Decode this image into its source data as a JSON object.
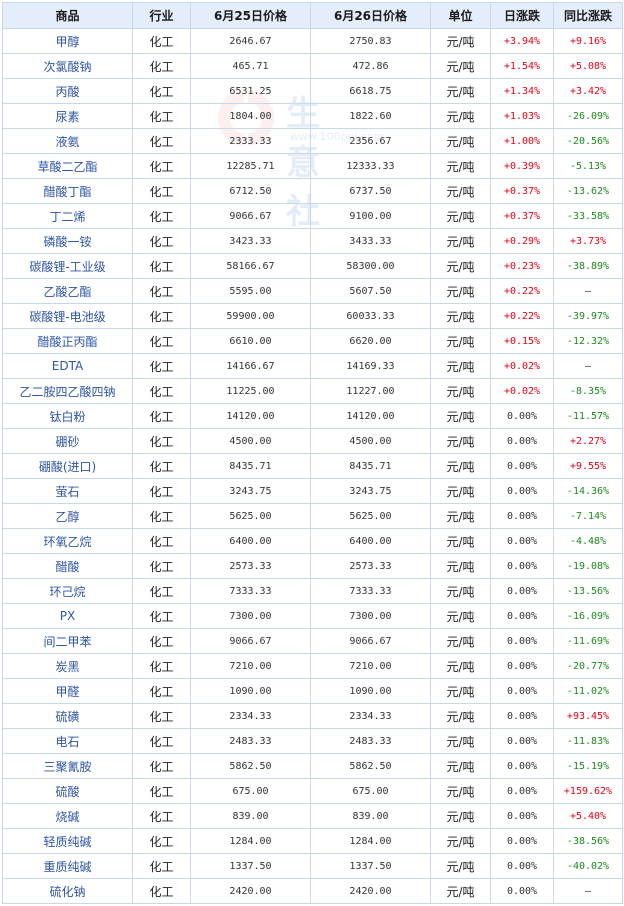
{
  "headers": {
    "product": "商品",
    "industry": "行业",
    "price_0625": "6月25日价格",
    "price_0626": "6月26日价格",
    "unit": "单位",
    "daily_change": "日涨跌",
    "yoy_change": "同比涨跌"
  },
  "watermark": {
    "name": "生意社",
    "url": "www.100ppi.com"
  },
  "colors": {
    "up": "#e60012",
    "down": "#1b8a1b",
    "header_bg": "#e4eefa",
    "border": "#c9d8e9",
    "link": "#2f55a5"
  },
  "rows": [
    {
      "name": "甲醇",
      "industry": "化工",
      "p1": "2646.67",
      "p2": "2750.83",
      "unit": "元/吨",
      "daily": "+3.94%",
      "daily_dir": "up",
      "yoy": "+9.16%",
      "yoy_dir": "up"
    },
    {
      "name": "次氯酸钠",
      "industry": "化工",
      "p1": "465.71",
      "p2": "472.86",
      "unit": "元/吨",
      "daily": "+1.54%",
      "daily_dir": "up",
      "yoy": "+5.08%",
      "yoy_dir": "up"
    },
    {
      "name": "丙酸",
      "industry": "化工",
      "p1": "6531.25",
      "p2": "6618.75",
      "unit": "元/吨",
      "daily": "+1.34%",
      "daily_dir": "up",
      "yoy": "+3.42%",
      "yoy_dir": "up"
    },
    {
      "name": "尿素",
      "industry": "化工",
      "p1": "1804.00",
      "p2": "1822.60",
      "unit": "元/吨",
      "daily": "+1.03%",
      "daily_dir": "up",
      "yoy": "-26.09%",
      "yoy_dir": "down"
    },
    {
      "name": "液氨",
      "industry": "化工",
      "p1": "2333.33",
      "p2": "2356.67",
      "unit": "元/吨",
      "daily": "+1.00%",
      "daily_dir": "up",
      "yoy": "-20.56%",
      "yoy_dir": "down"
    },
    {
      "name": "草酸二乙酯",
      "industry": "化工",
      "p1": "12285.71",
      "p2": "12333.33",
      "unit": "元/吨",
      "daily": "+0.39%",
      "daily_dir": "up",
      "yoy": "-5.13%",
      "yoy_dir": "down"
    },
    {
      "name": "醋酸丁酯",
      "industry": "化工",
      "p1": "6712.50",
      "p2": "6737.50",
      "unit": "元/吨",
      "daily": "+0.37%",
      "daily_dir": "up",
      "yoy": "-13.62%",
      "yoy_dir": "down"
    },
    {
      "name": "丁二烯",
      "industry": "化工",
      "p1": "9066.67",
      "p2": "9100.00",
      "unit": "元/吨",
      "daily": "+0.37%",
      "daily_dir": "up",
      "yoy": "-33.58%",
      "yoy_dir": "down"
    },
    {
      "name": "磷酸一铵",
      "industry": "化工",
      "p1": "3423.33",
      "p2": "3433.33",
      "unit": "元/吨",
      "daily": "+0.29%",
      "daily_dir": "up",
      "yoy": "+3.73%",
      "yoy_dir": "up"
    },
    {
      "name": "碳酸锂-工业级",
      "industry": "化工",
      "p1": "58166.67",
      "p2": "58300.00",
      "unit": "元/吨",
      "daily": "+0.23%",
      "daily_dir": "up",
      "yoy": "-38.89%",
      "yoy_dir": "down"
    },
    {
      "name": "乙酸乙酯",
      "industry": "化工",
      "p1": "5595.00",
      "p2": "5607.50",
      "unit": "元/吨",
      "daily": "+0.22%",
      "daily_dir": "up",
      "yoy": "—",
      "yoy_dir": "flat"
    },
    {
      "name": "碳酸锂-电池级",
      "industry": "化工",
      "p1": "59900.00",
      "p2": "60033.33",
      "unit": "元/吨",
      "daily": "+0.22%",
      "daily_dir": "up",
      "yoy": "-39.97%",
      "yoy_dir": "down"
    },
    {
      "name": "醋酸正丙酯",
      "industry": "化工",
      "p1": "6610.00",
      "p2": "6620.00",
      "unit": "元/吨",
      "daily": "+0.15%",
      "daily_dir": "up",
      "yoy": "-12.32%",
      "yoy_dir": "down"
    },
    {
      "name": "EDTA",
      "industry": "化工",
      "p1": "14166.67",
      "p2": "14169.33",
      "unit": "元/吨",
      "daily": "+0.02%",
      "daily_dir": "up",
      "yoy": "—",
      "yoy_dir": "flat"
    },
    {
      "name": "乙二胺四乙酸四钠",
      "industry": "化工",
      "p1": "11225.00",
      "p2": "11227.00",
      "unit": "元/吨",
      "daily": "+0.02%",
      "daily_dir": "up",
      "yoy": "-8.35%",
      "yoy_dir": "down"
    },
    {
      "name": "钛白粉",
      "industry": "化工",
      "p1": "14120.00",
      "p2": "14120.00",
      "unit": "元/吨",
      "daily": "0.00%",
      "daily_dir": "flat",
      "yoy": "-11.57%",
      "yoy_dir": "down"
    },
    {
      "name": "硼砂",
      "industry": "化工",
      "p1": "4500.00",
      "p2": "4500.00",
      "unit": "元/吨",
      "daily": "0.00%",
      "daily_dir": "flat",
      "yoy": "+2.27%",
      "yoy_dir": "up"
    },
    {
      "name": "硼酸(进口)",
      "industry": "化工",
      "p1": "8435.71",
      "p2": "8435.71",
      "unit": "元/吨",
      "daily": "0.00%",
      "daily_dir": "flat",
      "yoy": "+9.55%",
      "yoy_dir": "up"
    },
    {
      "name": "萤石",
      "industry": "化工",
      "p1": "3243.75",
      "p2": "3243.75",
      "unit": "元/吨",
      "daily": "0.00%",
      "daily_dir": "flat",
      "yoy": "-14.36%",
      "yoy_dir": "down"
    },
    {
      "name": "乙醇",
      "industry": "化工",
      "p1": "5625.00",
      "p2": "5625.00",
      "unit": "元/吨",
      "daily": "0.00%",
      "daily_dir": "flat",
      "yoy": "-7.14%",
      "yoy_dir": "down"
    },
    {
      "name": "环氧乙烷",
      "industry": "化工",
      "p1": "6400.00",
      "p2": "6400.00",
      "unit": "元/吨",
      "daily": "0.00%",
      "daily_dir": "flat",
      "yoy": "-4.48%",
      "yoy_dir": "down"
    },
    {
      "name": "醋酸",
      "industry": "化工",
      "p1": "2573.33",
      "p2": "2573.33",
      "unit": "元/吨",
      "daily": "0.00%",
      "daily_dir": "flat",
      "yoy": "-19.08%",
      "yoy_dir": "down"
    },
    {
      "name": "环己烷",
      "industry": "化工",
      "p1": "7333.33",
      "p2": "7333.33",
      "unit": "元/吨",
      "daily": "0.00%",
      "daily_dir": "flat",
      "yoy": "-13.56%",
      "yoy_dir": "down"
    },
    {
      "name": "PX",
      "industry": "化工",
      "p1": "7300.00",
      "p2": "7300.00",
      "unit": "元/吨",
      "daily": "0.00%",
      "daily_dir": "flat",
      "yoy": "-16.09%",
      "yoy_dir": "down"
    },
    {
      "name": "间二甲苯",
      "industry": "化工",
      "p1": "9066.67",
      "p2": "9066.67",
      "unit": "元/吨",
      "daily": "0.00%",
      "daily_dir": "flat",
      "yoy": "-11.69%",
      "yoy_dir": "down"
    },
    {
      "name": "炭黑",
      "industry": "化工",
      "p1": "7210.00",
      "p2": "7210.00",
      "unit": "元/吨",
      "daily": "0.00%",
      "daily_dir": "flat",
      "yoy": "-20.77%",
      "yoy_dir": "down"
    },
    {
      "name": "甲醛",
      "industry": "化工",
      "p1": "1090.00",
      "p2": "1090.00",
      "unit": "元/吨",
      "daily": "0.00%",
      "daily_dir": "flat",
      "yoy": "-11.02%",
      "yoy_dir": "down"
    },
    {
      "name": "硫磺",
      "industry": "化工",
      "p1": "2334.33",
      "p2": "2334.33",
      "unit": "元/吨",
      "daily": "0.00%",
      "daily_dir": "flat",
      "yoy": "+93.45%",
      "yoy_dir": "up"
    },
    {
      "name": "电石",
      "industry": "化工",
      "p1": "2483.33",
      "p2": "2483.33",
      "unit": "元/吨",
      "daily": "0.00%",
      "daily_dir": "flat",
      "yoy": "-11.83%",
      "yoy_dir": "down"
    },
    {
      "name": "三聚氰胺",
      "industry": "化工",
      "p1": "5862.50",
      "p2": "5862.50",
      "unit": "元/吨",
      "daily": "0.00%",
      "daily_dir": "flat",
      "yoy": "-15.19%",
      "yoy_dir": "down"
    },
    {
      "name": "硫酸",
      "industry": "化工",
      "p1": "675.00",
      "p2": "675.00",
      "unit": "元/吨",
      "daily": "0.00%",
      "daily_dir": "flat",
      "yoy": "+159.62%",
      "yoy_dir": "up"
    },
    {
      "name": "烧碱",
      "industry": "化工",
      "p1": "839.00",
      "p2": "839.00",
      "unit": "元/吨",
      "daily": "0.00%",
      "daily_dir": "flat",
      "yoy": "+5.40%",
      "yoy_dir": "up"
    },
    {
      "name": "轻质纯碱",
      "industry": "化工",
      "p1": "1284.00",
      "p2": "1284.00",
      "unit": "元/吨",
      "daily": "0.00%",
      "daily_dir": "flat",
      "yoy": "-38.56%",
      "yoy_dir": "down"
    },
    {
      "name": "重质纯碱",
      "industry": "化工",
      "p1": "1337.50",
      "p2": "1337.50",
      "unit": "元/吨",
      "daily": "0.00%",
      "daily_dir": "flat",
      "yoy": "-40.02%",
      "yoy_dir": "down"
    },
    {
      "name": "硫化钠",
      "industry": "化工",
      "p1": "2420.00",
      "p2": "2420.00",
      "unit": "元/吨",
      "daily": "0.00%",
      "daily_dir": "flat",
      "yoy": "—",
      "yoy_dir": "flat"
    }
  ]
}
